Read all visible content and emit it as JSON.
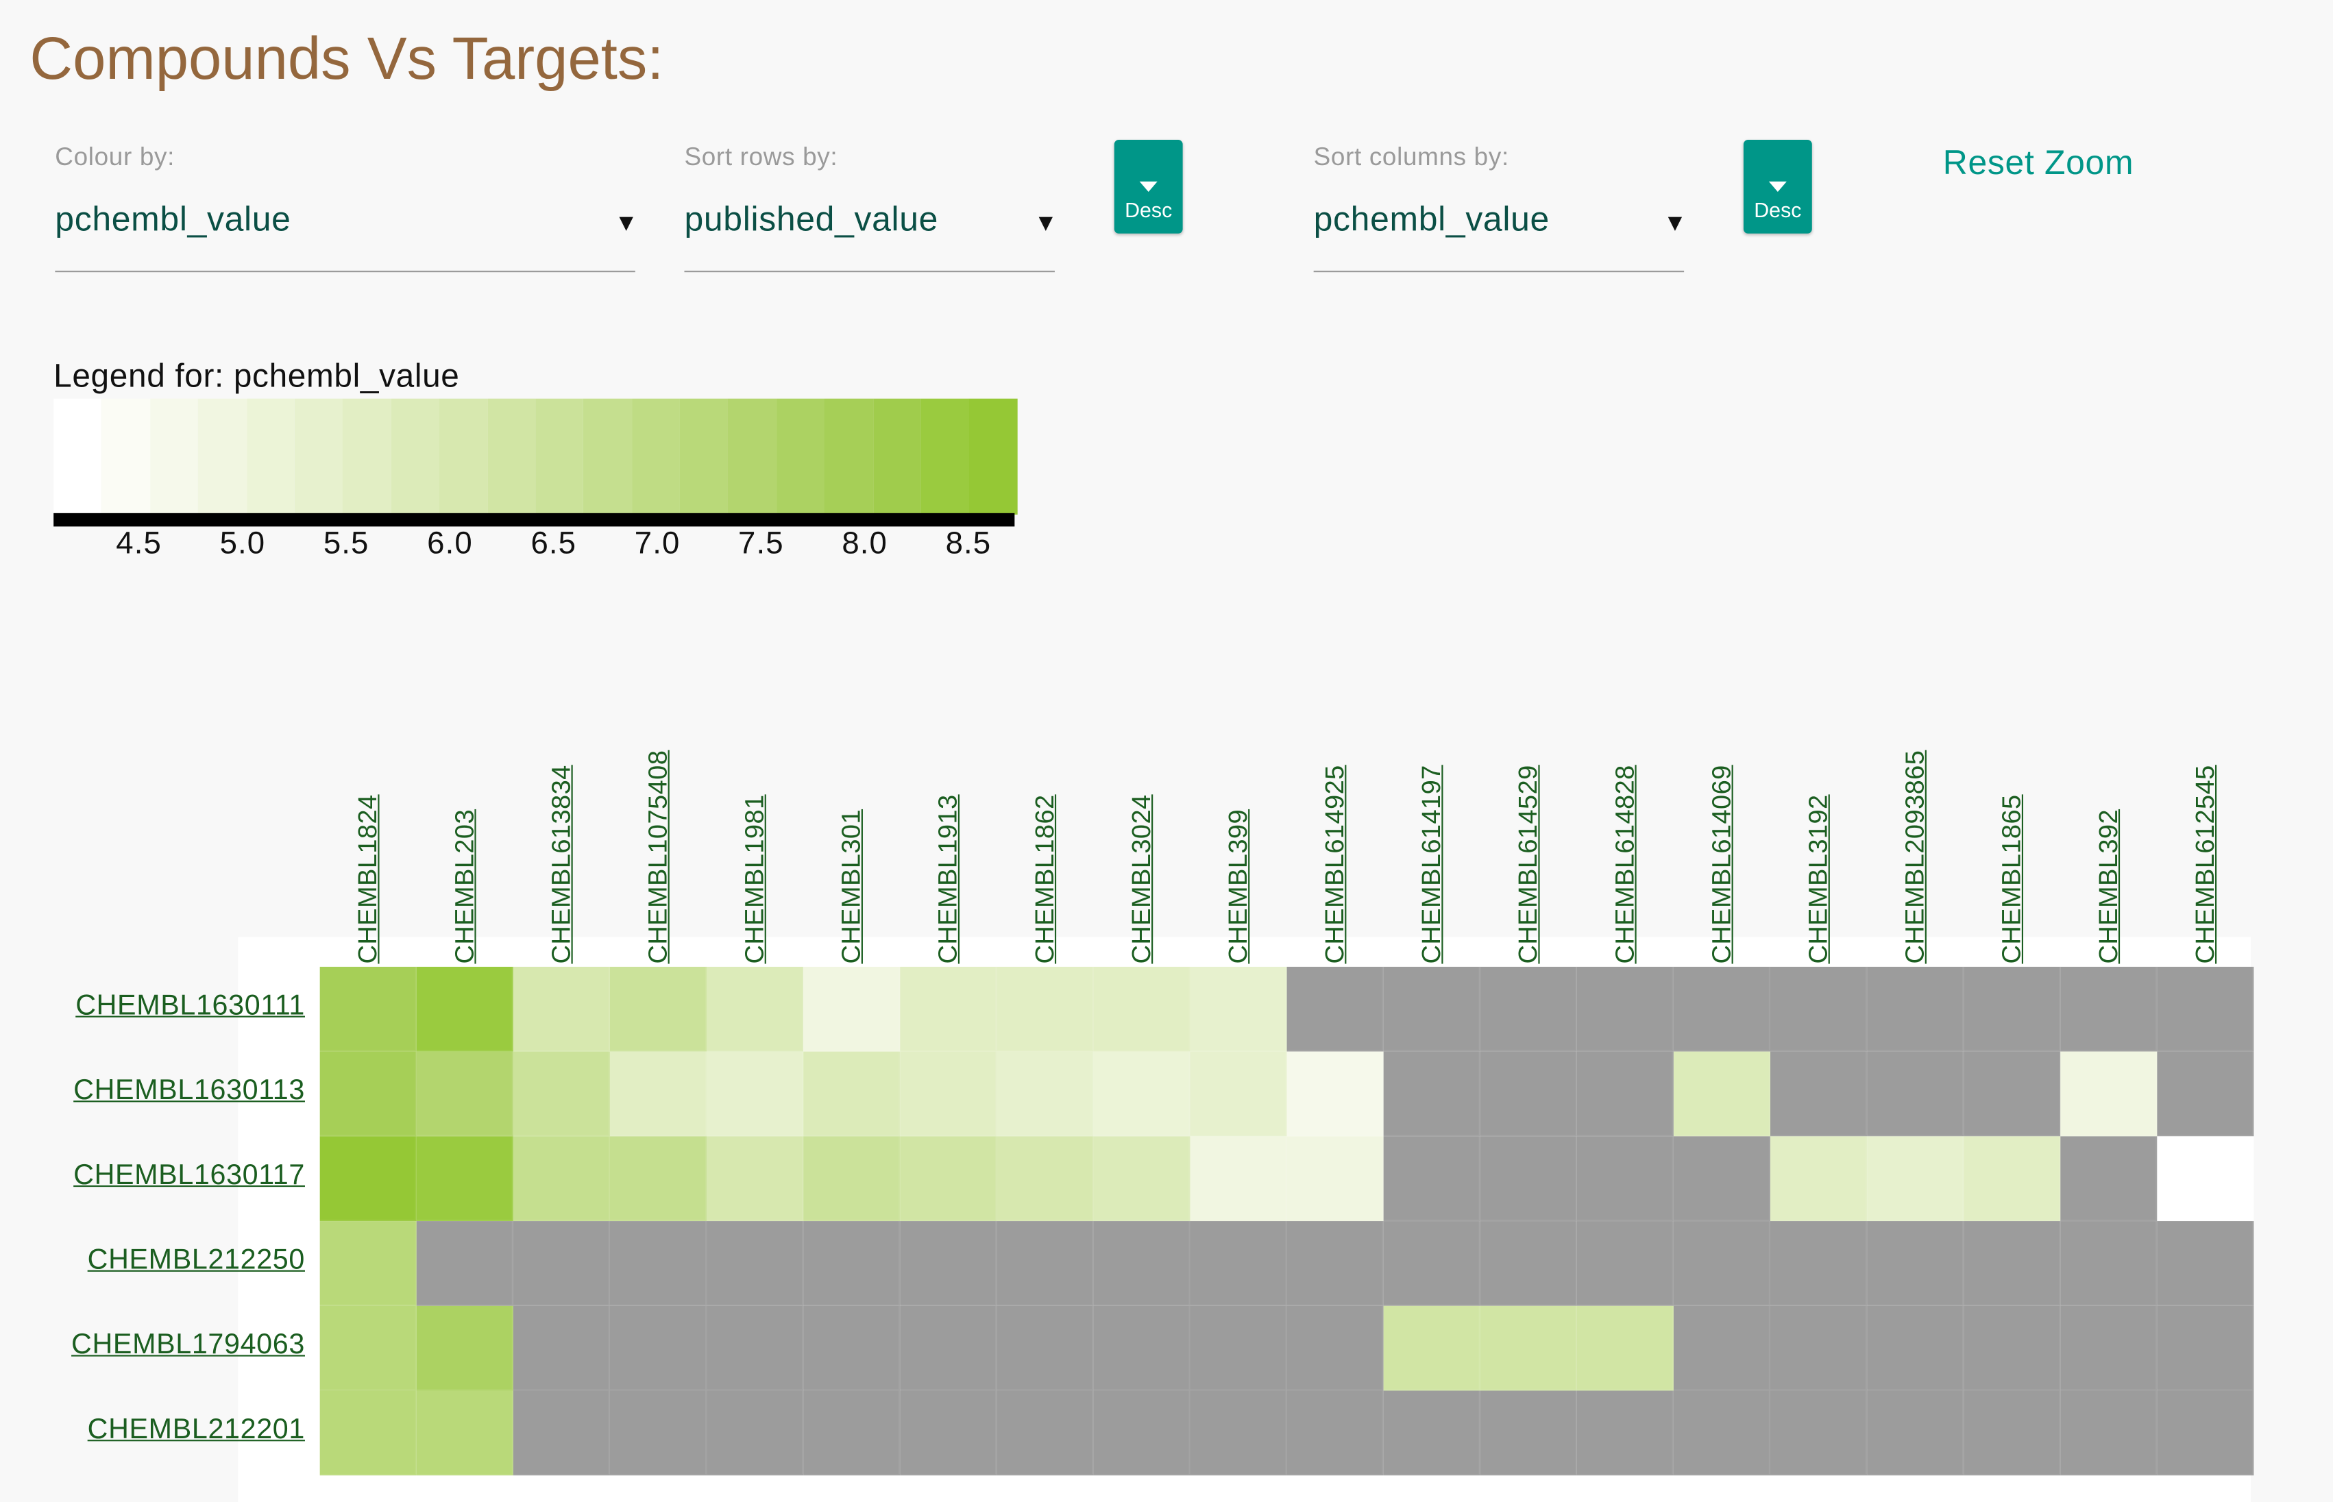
{
  "title": "Compounds Vs Targets:",
  "controls": {
    "colour_by": {
      "label": "Colour by:",
      "value": "pchembl_value"
    },
    "sort_rows": {
      "label": "Sort rows by:",
      "value": "published_value",
      "order": "Desc"
    },
    "sort_cols": {
      "label": "Sort columns by:",
      "value": "pchembl_value",
      "order": "Desc"
    },
    "reset_zoom": "Reset Zoom"
  },
  "legend": {
    "title": "Legend for:  pchembl_value",
    "ticks": [
      "4.5",
      "5.0",
      "5.5",
      "6.0",
      "6.5",
      "7.0",
      "7.5",
      "8.0",
      "8.5"
    ],
    "min": 4.0,
    "max": 8.9,
    "colors": [
      "#ffffff",
      "#fbfcf5",
      "#f6f9eb",
      "#f1f6e1",
      "#ecf4d7",
      "#e7f1ce",
      "#e2eec4",
      "#dcebb9",
      "#d7e8af",
      "#d1e5a4",
      "#cbe29a",
      "#c5df8f",
      "#bfdc84",
      "#b9d979",
      "#b3d56e",
      "#acd262",
      "#a6cf57",
      "#a0cc4c",
      "#9acb3f",
      "#95c835"
    ],
    "missing_color": "#9c9c9c"
  },
  "columns": [
    "CHEMBL1824",
    "CHEMBL203",
    "CHEMBL613834",
    "CHEMBL1075408",
    "CHEMBL1981",
    "CHEMBL301",
    "CHEMBL1913",
    "CHEMBL1862",
    "CHEMBL3024",
    "CHEMBL399",
    "CHEMBL614925",
    "CHEMBL614197",
    "CHEMBL614529",
    "CHEMBL614828",
    "CHEMBL614069",
    "CHEMBL3192",
    "CHEMBL2093865",
    "CHEMBL1865",
    "CHEMBL392",
    "CHEMBL612545"
  ],
  "rows": [
    {
      "id": "CHEMBL1630111",
      "values": [
        8.2,
        8.6,
        6.0,
        6.6,
        5.9,
        4.8,
        5.6,
        5.6,
        5.6,
        5.3,
        null,
        null,
        null,
        null,
        null,
        null,
        null,
        null,
        null,
        null
      ]
    },
    {
      "id": "CHEMBL1630113",
      "values": [
        8.1,
        7.6,
        6.6,
        5.5,
        5.4,
        5.8,
        5.6,
        5.4,
        5.0,
        5.3,
        4.6,
        null,
        null,
        null,
        5.8,
        null,
        null,
        null,
        4.8,
        null
      ]
    },
    {
      "id": "CHEMBL1630117",
      "values": [
        8.8,
        8.6,
        6.8,
        6.9,
        6.0,
        6.5,
        6.3,
        6.0,
        5.9,
        4.9,
        4.9,
        null,
        null,
        null,
        null,
        5.6,
        5.4,
        5.6,
        null,
        4.0
      ]
    },
    {
      "id": "CHEMBL212250",
      "values": [
        7.4,
        null,
        null,
        null,
        null,
        null,
        null,
        null,
        null,
        null,
        null,
        null,
        null,
        null,
        null,
        null,
        null,
        null,
        null,
        null
      ]
    },
    {
      "id": "CHEMBL1794063",
      "values": [
        7.4,
        7.9,
        null,
        null,
        null,
        null,
        null,
        null,
        null,
        null,
        null,
        6.3,
        6.3,
        6.2,
        null,
        null,
        null,
        null,
        null,
        null
      ]
    },
    {
      "id": "CHEMBL212201",
      "values": [
        7.4,
        7.4,
        null,
        null,
        null,
        null,
        null,
        null,
        null,
        null,
        null,
        null,
        null,
        null,
        null,
        null,
        null,
        null,
        null,
        null
      ]
    }
  ]
}
